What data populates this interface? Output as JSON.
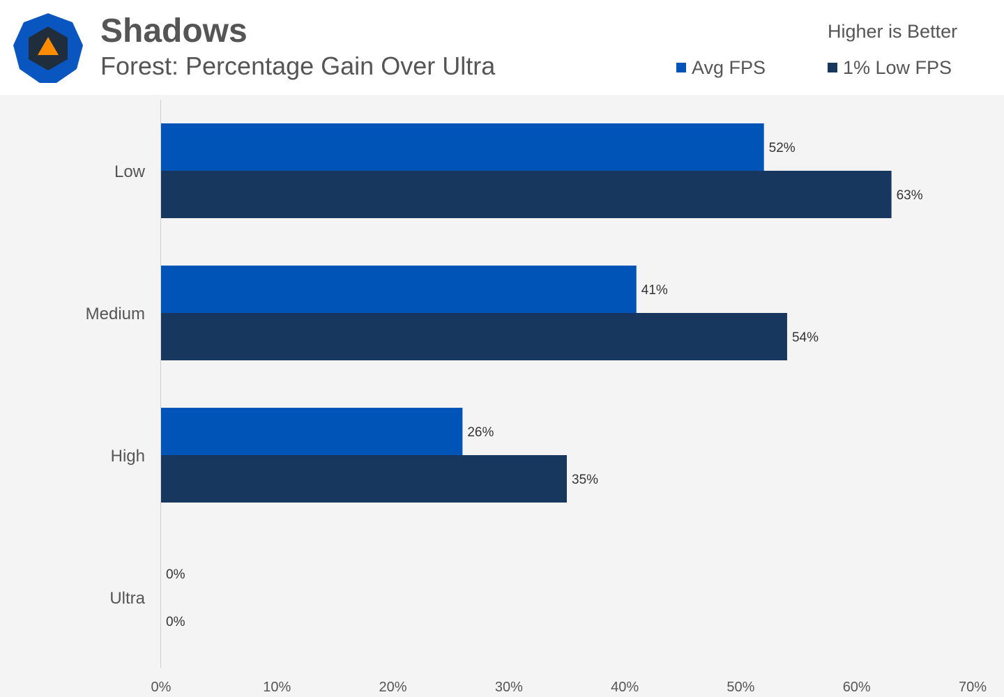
{
  "header": {
    "title": "Shadows",
    "subtitle": "Forest: Percentage Gain Over Ultra",
    "note": "Higher is Better",
    "logo_icon": "hexagon-triangle-logo-icon"
  },
  "colors": {
    "avg_fps": "#0053b7",
    "low_fps": "#17375e",
    "logo_outer": "#0a56c0",
    "logo_inner": "#1f2d3d",
    "logo_triangle": "#ff8c00"
  },
  "chart_data": {
    "type": "bar",
    "orientation": "horizontal",
    "categories": [
      "Low",
      "Medium",
      "High",
      "Ultra"
    ],
    "series": [
      {
        "name": "Avg FPS",
        "values": [
          52,
          41,
          26,
          0
        ]
      },
      {
        "name": "1% Low FPS",
        "values": [
          63,
          54,
          35,
          0
        ]
      }
    ],
    "value_labels": {
      "Avg FPS": [
        "52%",
        "41%",
        "26%",
        "0%"
      ],
      "1% Low FPS": [
        "63%",
        "54%",
        "35%",
        "0%"
      ]
    },
    "xlim": [
      0,
      70
    ],
    "xticks": [
      "0%",
      "10%",
      "20%",
      "30%",
      "40%",
      "50%",
      "60%",
      "70%"
    ],
    "legend_position": "top-right",
    "grid": false
  }
}
